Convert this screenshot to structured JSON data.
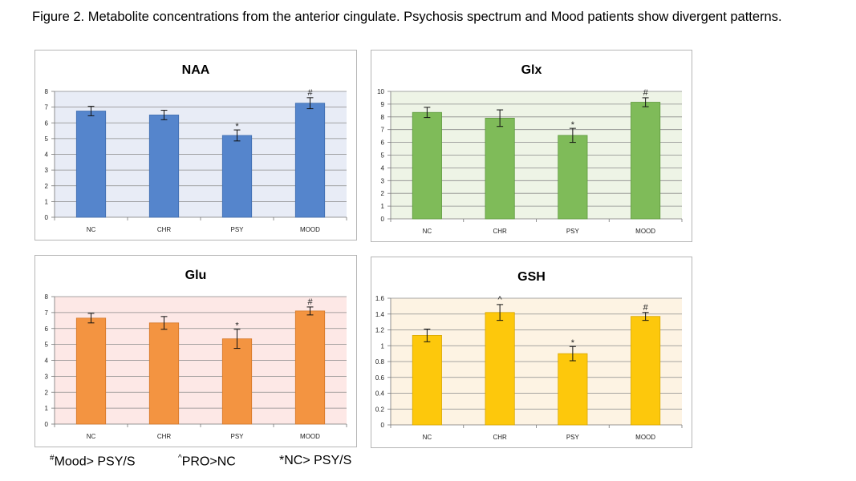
{
  "caption": "Figure 2. Metabolite concentrations from the anterior cingulate. Psychosis spectrum and Mood patients show divergent patterns.",
  "chart_data": [
    {
      "type": "bar",
      "title": "NAA",
      "categories": [
        "NC",
        "CHR",
        "PSY",
        "MOOD"
      ],
      "values": [
        6.75,
        6.5,
        5.2,
        7.25
      ],
      "errors": [
        0.3,
        0.3,
        0.35,
        0.35
      ],
      "annotations": [
        "",
        "",
        "*",
        "#"
      ],
      "ylim": [
        0,
        8
      ],
      "yticks": [
        "0",
        "1",
        "2",
        "3",
        "4",
        "5",
        "6",
        "7",
        "8"
      ],
      "bar_color": "#5585cc",
      "bar_edge": "#3f6db0",
      "plot_bg": "#e8ecf6",
      "grid": true
    },
    {
      "type": "bar",
      "title": "Glx",
      "categories": [
        "NC",
        "CHR",
        "PSY",
        "MOOD"
      ],
      "values": [
        8.35,
        7.9,
        6.55,
        9.15
      ],
      "errors": [
        0.4,
        0.65,
        0.55,
        0.35
      ],
      "annotations": [
        "",
        "",
        "*",
        "#"
      ],
      "ylim": [
        0,
        10
      ],
      "yticks": [
        "0",
        "1",
        "2",
        "3",
        "4",
        "5",
        "6",
        "7",
        "8",
        "9",
        "10"
      ],
      "bar_color": "#7fbb59",
      "bar_edge": "#5f9a3e",
      "plot_bg": "#eef4e6",
      "grid": true
    },
    {
      "type": "bar",
      "title": "Glu",
      "categories": [
        "NC",
        "CHR",
        "PSY",
        "MOOD"
      ],
      "values": [
        6.65,
        6.35,
        5.35,
        7.1
      ],
      "errors": [
        0.3,
        0.4,
        0.6,
        0.25
      ],
      "annotations": [
        "",
        "",
        "*",
        "#"
      ],
      "ylim": [
        0,
        8
      ],
      "yticks": [
        "0",
        "1",
        "2",
        "3",
        "4",
        "5",
        "6",
        "7",
        "8"
      ],
      "bar_color": "#f39441",
      "bar_edge": "#d47729",
      "plot_bg": "#fde8e6",
      "grid": true
    },
    {
      "type": "bar",
      "title": "GSH",
      "categories": [
        "NC",
        "CHR",
        "PSY",
        "MOOD"
      ],
      "values": [
        1.13,
        1.42,
        0.9,
        1.37
      ],
      "errors": [
        0.08,
        0.1,
        0.09,
        0.05
      ],
      "annotations": [
        "",
        "^",
        "*",
        "#"
      ],
      "ylim": [
        0,
        1.6
      ],
      "yticks": [
        "0",
        "0.2",
        "0.4",
        "0.6",
        "0.8",
        "1",
        "1.2",
        "1.4",
        "1.6"
      ],
      "bar_color": "#fdc80c",
      "bar_edge": "#d9a700",
      "plot_bg": "#fdf3e3",
      "grid": true
    }
  ],
  "footnotes": {
    "mood_mark": "#",
    "mood_text": "Mood> PSY/S",
    "pro_mark": "^",
    "pro_text": "PRO>NC",
    "nc_text": "*NC> PSY/S"
  }
}
